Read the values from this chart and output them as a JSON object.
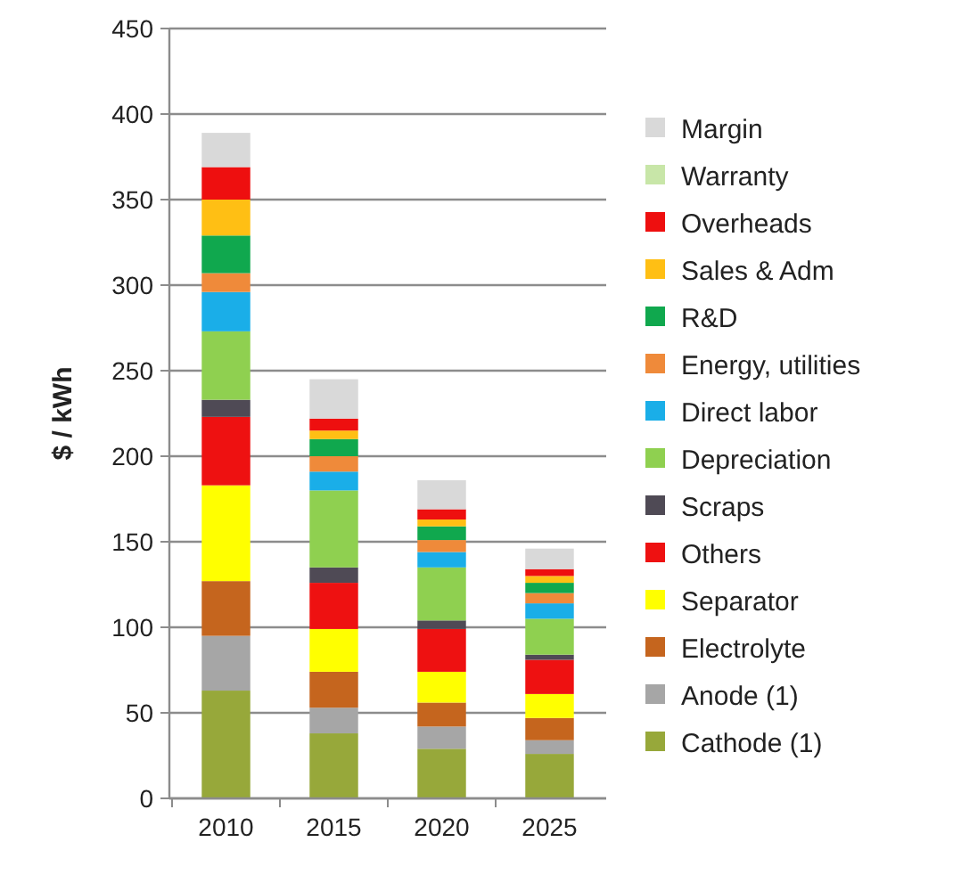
{
  "chart_data": {
    "type": "bar",
    "stacked": true,
    "ylabel": "$ / kWh",
    "categories": [
      "2010",
      "2015",
      "2020",
      "2025"
    ],
    "ylim": [
      0,
      450
    ],
    "yticks": [
      0,
      50,
      100,
      150,
      200,
      250,
      300,
      350,
      400,
      450
    ],
    "grid": "y",
    "legend": "right",
    "series": [
      {
        "name": "Cathode (1)",
        "color": "#97a83a",
        "values": [
          63,
          38,
          29,
          26
        ]
      },
      {
        "name": "Anode (1)",
        "color": "#a6a6a6",
        "values": [
          32,
          15,
          13,
          8
        ]
      },
      {
        "name": "Electrolyte",
        "color": "#c5651e",
        "values": [
          32,
          21,
          14,
          13
        ]
      },
      {
        "name": "Separator",
        "color": "#ffff00",
        "values": [
          56,
          25,
          18,
          14
        ]
      },
      {
        "name": "Others",
        "color": "#ee1111",
        "values": [
          40,
          27,
          25,
          20
        ]
      },
      {
        "name": "Scraps",
        "color": "#4f4a55",
        "values": [
          10,
          9,
          5,
          3
        ]
      },
      {
        "name": "Depreciation",
        "color": "#8fd050",
        "values": [
          40,
          45,
          31,
          21
        ]
      },
      {
        "name": "Direct labor",
        "color": "#1aaee8",
        "values": [
          23,
          11,
          9,
          9
        ]
      },
      {
        "name": "Energy, utilities",
        "color": "#ef8a3a",
        "values": [
          11,
          9,
          7,
          6
        ]
      },
      {
        "name": "R&D",
        "color": "#10a84e",
        "values": [
          22,
          10,
          8,
          6
        ]
      },
      {
        "name": "Sales & Adm",
        "color": "#ffbf14",
        "values": [
          21,
          5,
          4,
          4
        ]
      },
      {
        "name": "Overheads",
        "color": "#ee0f0f",
        "values": [
          19,
          7,
          6,
          4
        ]
      },
      {
        "name": "Warranty",
        "color": "#c8e6a8",
        "values": [
          null,
          null,
          null,
          null
        ]
      },
      {
        "name": "Margin",
        "color": "#d9d9d9",
        "values": [
          20,
          23,
          17,
          12
        ]
      }
    ]
  }
}
